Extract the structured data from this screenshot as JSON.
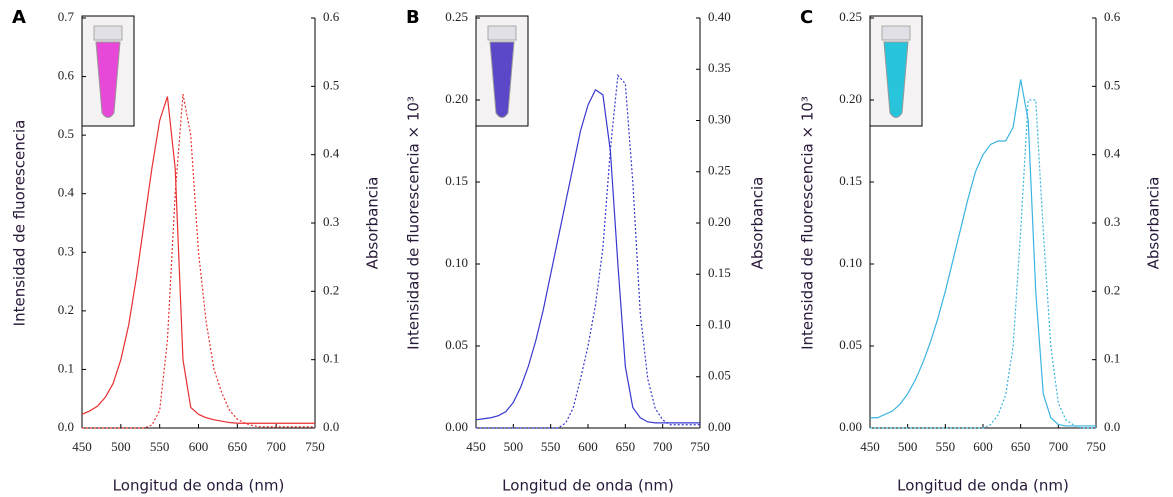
{
  "chart_data": [
    {
      "type": "line",
      "label": "A",
      "xlabel": "Longitud de onda (nm)",
      "ylabel": "Intensidad de fluorescencia",
      "y2label": "Absorbancia",
      "x": [
        450,
        460,
        470,
        480,
        490,
        500,
        510,
        520,
        530,
        540,
        550,
        560,
        570,
        580,
        590,
        600,
        610,
        620,
        630,
        640,
        650,
        660,
        670,
        680,
        690,
        700,
        710,
        720,
        730,
        740,
        750
      ],
      "xlim": [
        450,
        750
      ],
      "xticks": [
        450,
        500,
        550,
        600,
        650,
        700,
        750
      ],
      "ylim": [
        0,
        0.7
      ],
      "yticks": [
        {
          "value": 0,
          "label": "0.0"
        },
        0.1,
        0.2,
        0.3,
        0.4,
        0.5,
        0.6,
        0.7
      ],
      "y2lim": [
        0,
        0.6
      ],
      "y2ticks": [
        {
          "value": 0,
          "label": "0.0"
        },
        0.1,
        0.2,
        0.3,
        0.4,
        0.5,
        0.6
      ],
      "series": [
        {
          "color": "#e83030",
          "dash": false,
          "axis": "y2",
          "values": [
            0.02,
            0.025,
            0.032,
            0.045,
            0.065,
            0.1,
            0.15,
            0.22,
            0.3,
            0.38,
            0.45,
            0.485,
            0.38,
            0.1,
            0.03,
            0.02,
            0.015,
            0.012,
            0.01,
            0.008,
            0.007,
            0.007,
            0.007,
            0.007,
            0.007,
            0.007,
            0.007,
            0.007,
            0.007,
            0.007,
            0.007
          ]
        },
        {
          "color": "#e83030",
          "dash": true,
          "values": [
            0,
            0,
            0,
            0,
            0,
            0,
            0,
            0,
            0,
            0.005,
            0.03,
            0.15,
            0.4,
            0.57,
            0.5,
            0.3,
            0.18,
            0.1,
            0.06,
            0.03,
            0.015,
            0.008,
            0.004,
            0.002,
            0.002,
            0.002,
            0.002,
            0.002,
            0.002,
            0.002,
            0.002
          ]
        }
      ]
    },
    {
      "type": "line",
      "label": "B",
      "xlabel": "Longitud de onda (nm)",
      "ylabel": "Intensidad de fluorescencia × 10³",
      "y2label": "Absorbancia",
      "x": [
        450,
        460,
        470,
        480,
        490,
        500,
        510,
        520,
        530,
        540,
        550,
        560,
        570,
        580,
        590,
        600,
        610,
        620,
        630,
        640,
        650,
        660,
        670,
        680,
        690,
        700,
        710,
        720,
        730,
        740,
        750
      ],
      "xlim": [
        450,
        750
      ],
      "xticks": [
        450,
        500,
        550,
        600,
        650,
        700,
        750
      ],
      "ylim": [
        0,
        0.25
      ],
      "yticks": [
        {
          "value": 0,
          "label": "0.00"
        },
        0.05,
        {
          "value": 0.1,
          "label": "0.10"
        },
        0.15,
        {
          "value": 0.2,
          "label": "0.20"
        },
        0.25
      ],
      "y2lim": [
        0,
        0.4
      ],
      "y2ticks": [
        {
          "value": 0,
          "label": "0.00"
        },
        0.05,
        {
          "value": 0.1,
          "label": "0.10"
        },
        0.15,
        {
          "value": 0.2,
          "label": "0.20"
        },
        0.25,
        {
          "value": 0.3,
          "label": "0.30"
        },
        0.35,
        {
          "value": 0.4,
          "label": "0.40"
        }
      ],
      "series": [
        {
          "color": "#3838d0",
          "dash": false,
          "axis": "y2",
          "values": [
            0.008,
            0.009,
            0.01,
            0.012,
            0.016,
            0.025,
            0.04,
            0.06,
            0.085,
            0.115,
            0.15,
            0.185,
            0.22,
            0.255,
            0.29,
            0.315,
            0.33,
            0.325,
            0.27,
            0.16,
            0.06,
            0.02,
            0.01,
            0.006,
            0.005,
            0.005,
            0.005,
            0.005,
            0.005,
            0.005,
            0.005
          ]
        },
        {
          "color": "#3838d0",
          "dash": true,
          "values": [
            0,
            0,
            0,
            0,
            0,
            0,
            0,
            0,
            0,
            0,
            0,
            0,
            0.003,
            0.012,
            0.03,
            0.05,
            0.075,
            0.11,
            0.17,
            0.215,
            0.21,
            0.15,
            0.07,
            0.03,
            0.012,
            0.005,
            0.002,
            0.002,
            0.002,
            0.002,
            0.002
          ]
        }
      ]
    },
    {
      "type": "line",
      "label": "C",
      "xlabel": "Longitud de onda (nm)",
      "ylabel": "Intensidad de fluorescencia × 10³",
      "y2label": "Absorbancia",
      "x": [
        450,
        460,
        470,
        480,
        490,
        500,
        510,
        520,
        530,
        540,
        550,
        560,
        570,
        580,
        590,
        600,
        610,
        620,
        630,
        640,
        650,
        660,
        670,
        680,
        690,
        700,
        710,
        720,
        730,
        740,
        750
      ],
      "xlim": [
        450,
        750
      ],
      "xticks": [
        450,
        500,
        550,
        600,
        650,
        700,
        750
      ],
      "ylim": [
        0,
        0.25
      ],
      "yticks": [
        {
          "value": 0,
          "label": "0.00"
        },
        0.05,
        {
          "value": 0.1,
          "label": "0.10"
        },
        0.15,
        {
          "value": 0.2,
          "label": "0.20"
        },
        0.25
      ],
      "y2lim": [
        0,
        0.6
      ],
      "y2ticks": [
        {
          "value": 0,
          "label": "0.0"
        },
        0.1,
        0.2,
        0.3,
        0.4,
        0.5,
        0.6
      ],
      "series": [
        {
          "color": "#3ab4e0",
          "dash": false,
          "axis": "y2",
          "values": [
            0.015,
            0.015,
            0.02,
            0.025,
            0.035,
            0.05,
            0.07,
            0.095,
            0.125,
            0.16,
            0.2,
            0.245,
            0.29,
            0.335,
            0.375,
            0.4,
            0.415,
            0.42,
            0.42,
            0.44,
            0.51,
            0.45,
            0.2,
            0.05,
            0.015,
            0.005,
            0.003,
            0.003,
            0.003,
            0.003,
            0.003
          ]
        },
        {
          "color": "#3ab4e0",
          "dash": true,
          "values": [
            0,
            0,
            0,
            0,
            0,
            0,
            0,
            0,
            0,
            0,
            0,
            0,
            0,
            0,
            0,
            0,
            0.002,
            0.008,
            0.02,
            0.05,
            0.12,
            0.2,
            0.2,
            0.12,
            0.05,
            0.015,
            0.005,
            0.002,
            0,
            0,
            0
          ]
        }
      ]
    }
  ]
}
